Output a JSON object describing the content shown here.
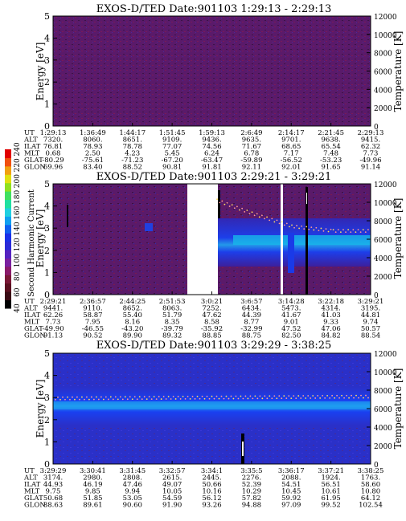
{
  "colorbar": {
    "label": "Second Harmonic Current",
    "ticks": [
      "40",
      "60",
      "80",
      "100",
      "120",
      "140",
      "160",
      "180",
      "200",
      "220",
      "240"
    ],
    "colors": [
      "#000000",
      "#3a0a14",
      "#5a1020",
      "#7a1836",
      "#8a1a6a",
      "#7a20a0",
      "#5522c0",
      "#2a2ad8",
      "#1a30e8",
      "#1060f0",
      "#10a0f0",
      "#20d0e0",
      "#20e0a0",
      "#40e060",
      "#90e020",
      "#e0e010",
      "#f0a010",
      "#f05010",
      "#e00000"
    ]
  },
  "row_labels": [
    "UT",
    "ALT",
    "ILAT",
    "MLT",
    "GLAT",
    "GLON"
  ],
  "panels": [
    {
      "title": "EXOS-D/TED   Date:901103   1:29:13 - 2:29:13",
      "ylabel": "Energy [eV]",
      "y2label": "Temperature [K]",
      "ylim": [
        0,
        5
      ],
      "y2lim": [
        0,
        12000
      ],
      "yticks": [
        "0",
        "1",
        "2",
        "3",
        "4",
        "5"
      ],
      "y2ticks": [
        "0",
        "2000",
        "4000",
        "6000",
        "8000",
        "10000",
        "12000"
      ],
      "bg": "#5a1a6a",
      "columns": [
        [
          "1:29:13",
          "7320.",
          "76.81",
          "0.68",
          "-80.29",
          "69.96"
        ],
        [
          "1:36:49",
          "8060.",
          "78.93",
          "2.50",
          "-75.61",
          "83.40"
        ],
        [
          "1:44:17",
          "8651.",
          "78.78",
          "4.23",
          "-71.23",
          "88.52"
        ],
        [
          "1:51:45",
          "9109.",
          "77.07",
          "5.45",
          "-67.20",
          "90.81"
        ],
        [
          "1:59:13",
          "9436.",
          "74.56",
          "6.24",
          "-63.47",
          "91.81"
        ],
        [
          "2:6:49",
          "9635.",
          "71.67",
          "6.78",
          "-59.89",
          "92.11"
        ],
        [
          "2:14:17",
          "9701.",
          "68.65",
          "7.17",
          "-56.52",
          "92.01"
        ],
        [
          "2:21:45",
          "9638.",
          "65.54",
          "7.48",
          "-53.23",
          "91.65"
        ],
        [
          "2:29:13",
          "9415.",
          "62.32",
          "7.73",
          "-49.96",
          "91.14"
        ]
      ]
    },
    {
      "title": "EXOS-D/TED   Date:901103   2:29:21 - 3:29:21",
      "ylabel": "Energy [eV]",
      "y2label": "Temperature [K]",
      "ylim": [
        0,
        5
      ],
      "y2lim": [
        0,
        12000
      ],
      "yticks": [
        "0",
        "1",
        "2",
        "3",
        "4",
        "5"
      ],
      "y2ticks": [
        "0",
        "2000",
        "4000",
        "6000",
        "8000",
        "10000",
        "12000"
      ],
      "bg": "#5a1a6a",
      "columns": [
        [
          "2:29:21",
          "9441.",
          "62.26",
          "7.73",
          "-49.90",
          "91.13"
        ],
        [
          "2:36:57",
          "9110.",
          "58.87",
          "7.95",
          "-46.55",
          "90.52"
        ],
        [
          "2:44:25",
          "8652.",
          "55.40",
          "8.16",
          "-43.20",
          "89.90"
        ],
        [
          "2:51:53",
          "8063.",
          "51.79",
          "8.35",
          "-39.79",
          "89.32"
        ],
        [
          "3:0:21",
          "7252.",
          "47.62",
          "8.58",
          "-35.92",
          "88.85"
        ],
        [
          "3:6:57",
          "6434.",
          "44.39",
          "8.77",
          "-32.99",
          "88.75"
        ],
        [
          "3:14:28",
          "5473.",
          "41.67",
          "9.01",
          "47.52",
          "82.50"
        ],
        [
          "3:22:18",
          "4314.",
          "41.03",
          "9.33",
          "47.06",
          "84.82"
        ],
        [
          "3:29:21",
          "3195.",
          "44.81",
          "9.74",
          "50.57",
          "88.54"
        ]
      ]
    },
    {
      "title": "EXOS-D/TED   Date:901103   3:29:29 - 3:38:25",
      "ylabel": "Energy [eV]",
      "y2label": "Temperature [K]",
      "ylim": [
        0,
        5
      ],
      "y2lim": [
        0,
        12000
      ],
      "yticks": [
        "0",
        "1",
        "2",
        "3",
        "4",
        "5"
      ],
      "y2ticks": [
        "0",
        "2000",
        "4000",
        "6000",
        "8000",
        "10000",
        "12000"
      ],
      "bg": "#2a30c8",
      "columns": [
        [
          "3:29:29",
          "3174.",
          "44.93",
          "9.75",
          "50.68",
          "88.63"
        ],
        [
          "3:30:41",
          "2980.",
          "46.19",
          "9.85",
          "51.85",
          "89.61"
        ],
        [
          "3:31:45",
          "2808.",
          "47.46",
          "9.94",
          "53.05",
          "90.60"
        ],
        [
          "3:32:57",
          "2615.",
          "49.07",
          "10.05",
          "54.59",
          "91.90"
        ],
        [
          "3:34:1",
          "2445.",
          "50.66",
          "10.16",
          "56.12",
          "93.26"
        ],
        [
          "3:35:5",
          "2276.",
          "52.39",
          "10.29",
          "57.82",
          "94.88"
        ],
        [
          "3:36:17",
          "2088.",
          "54.51",
          "10.45",
          "59.92",
          "97.09"
        ],
        [
          "3:37:21",
          "1924.",
          "56.51",
          "10.61",
          "61.95",
          "99.52"
        ],
        [
          "3:38:25",
          "1763.",
          "58.60",
          "10.80",
          "64.12",
          "102.54"
        ]
      ]
    }
  ],
  "chart_data": [
    {
      "type": "heatmap",
      "title": "EXOS-D/TED   Date:901103   1:29:13 - 2:29:13",
      "xlabel": "UT",
      "ylabel": "Energy [eV]",
      "y2label": "Temperature [K]",
      "ylim": [
        0,
        5
      ],
      "y2lim": [
        0,
        12000
      ],
      "x": [
        "1:29:13",
        "1:36:49",
        "1:44:17",
        "1:51:45",
        "1:59:13",
        "2:6:49",
        "2:14:17",
        "2:21:45",
        "2:29:13"
      ],
      "colorbar_range": [
        40,
        240
      ],
      "description_level": 90,
      "grid": false
    },
    {
      "type": "heatmap",
      "title": "EXOS-D/TED   Date:901103   2:29:21 - 3:29:21",
      "xlabel": "UT",
      "ylabel": "Energy [eV]",
      "y2label": "Temperature [K]",
      "ylim": [
        0,
        5
      ],
      "y2lim": [
        0,
        12000
      ],
      "x": [
        "2:29:21",
        "2:36:57",
        "2:44:25",
        "2:51:53",
        "3:0:21",
        "3:6:57",
        "3:14:28",
        "3:22:18",
        "3:29:21"
      ],
      "colorbar_range": [
        40,
        240
      ],
      "data_gap": [
        "2:54:00",
        "3:0:00"
      ],
      "temperature_trace": {
        "name": "",
        "x": [
          "3:0:21",
          "3:6:57",
          "3:14:28",
          "3:22:18",
          "3:29:21"
        ],
        "y": [
          10200,
          8800,
          7400,
          6900,
          6900
        ]
      },
      "grid": false
    },
    {
      "type": "heatmap",
      "title": "EXOS-D/TED   Date:901103   3:29:29 - 3:38:25",
      "xlabel": "UT",
      "ylabel": "Energy [eV]",
      "y2label": "Temperature [K]",
      "ylim": [
        0,
        5
      ],
      "y2lim": [
        0,
        12000
      ],
      "x": [
        "3:29:29",
        "3:30:41",
        "3:31:45",
        "3:32:57",
        "3:34:1",
        "3:35:5",
        "3:36:17",
        "3:37:21",
        "3:38:25"
      ],
      "colorbar_range": [
        40,
        240
      ],
      "temperature_trace": {
        "name": "",
        "x": [
          "3:29:29",
          "3:38:25"
        ],
        "y": [
          7100,
          7300
        ]
      },
      "grid": false
    }
  ]
}
